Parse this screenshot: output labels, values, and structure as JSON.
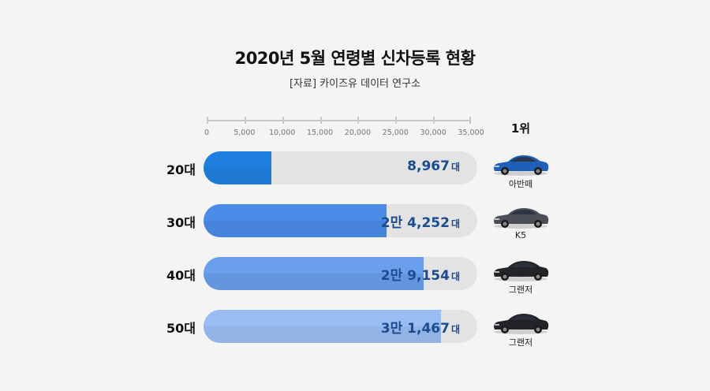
{
  "colors": {
    "bar_20s": "#2080e0",
    "bar_30s": "#4a8ce8",
    "bar_40s": "#6a9fec",
    "bar_50s": "#99bdf2",
    "track": "#e3e3e3",
    "value_text": "#1d4b8f"
  },
  "header": {
    "title": "2020년 5월 연령별 신차등록 현황",
    "source": "[자료] 카이즈유 데이터 연구소"
  },
  "rank_header": "1위",
  "unit": "대",
  "chart_data": {
    "type": "bar",
    "orientation": "horizontal",
    "title": "2020년 5월 연령별 신차등록 현황",
    "subtitle": "[자료] 카이즈유 데이터 연구소",
    "categories": [
      "20대",
      "30대",
      "40대",
      "50대"
    ],
    "values": [
      8967,
      24252,
      29154,
      31467
    ],
    "value_labels": [
      "8,967",
      "2만 4,252",
      "2만 9,154",
      "3만 1,467"
    ],
    "value_unit": "대",
    "top_model": [
      "아반떼",
      "K5",
      "그랜저",
      "그랜저"
    ],
    "xlim": [
      0,
      35000
    ],
    "ticks": [
      0,
      5000,
      10000,
      15000,
      20000,
      25000,
      30000,
      35000
    ],
    "tick_labels": [
      "0",
      "5,000",
      "10,000",
      "15,000",
      "20,000",
      "25,000",
      "30,000",
      "35,000"
    ]
  }
}
